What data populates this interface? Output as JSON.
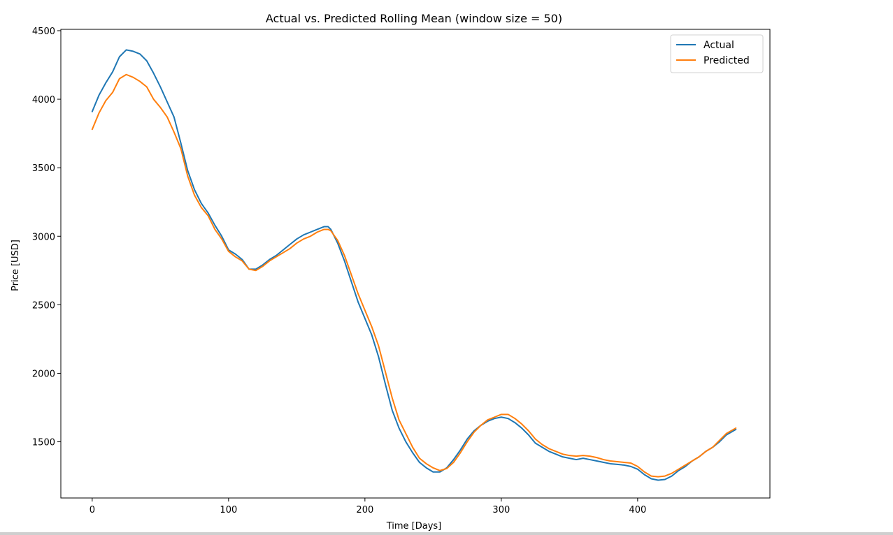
{
  "chart_data": {
    "type": "line",
    "title": "Actual vs. Predicted Rolling Mean (window size = 50)",
    "xlabel": "Time [Days]",
    "ylabel": "Price [USD]",
    "xlim": [
      -23,
      497
    ],
    "ylim": [
      1090,
      4510
    ],
    "xticks": [
      0,
      100,
      200,
      300,
      400
    ],
    "xtick_labels": [
      "0",
      "100",
      "200",
      "300",
      "400"
    ],
    "yticks": [
      1500,
      2000,
      2500,
      3000,
      3500,
      4000,
      4500
    ],
    "ytick_labels": [
      "1500",
      "2000",
      "2500",
      "3000",
      "3500",
      "4000",
      "4500"
    ],
    "grid": false,
    "legend": {
      "position": "top-right",
      "entries": [
        "Actual",
        "Predicted"
      ]
    },
    "colors": {
      "Actual": "#1f77b4",
      "Predicted": "#ff7f0e"
    },
    "series": [
      {
        "name": "Actual",
        "x": [
          0,
          5,
          10,
          15,
          20,
          25,
          30,
          35,
          40,
          45,
          50,
          55,
          60,
          65,
          70,
          75,
          80,
          85,
          90,
          95,
          100,
          105,
          110,
          115,
          120,
          125,
          130,
          135,
          140,
          145,
          150,
          155,
          160,
          165,
          170,
          173,
          175,
          180,
          185,
          190,
          195,
          200,
          205,
          210,
          215,
          220,
          225,
          230,
          235,
          240,
          245,
          250,
          255,
          260,
          265,
          270,
          275,
          280,
          285,
          290,
          295,
          300,
          305,
          310,
          315,
          320,
          325,
          330,
          335,
          340,
          345,
          350,
          355,
          360,
          365,
          370,
          375,
          380,
          385,
          390,
          395,
          400,
          405,
          410,
          415,
          420,
          425,
          430,
          435,
          440,
          445,
          450,
          455,
          460,
          465,
          472
        ],
        "values": [
          3910,
          4030,
          4120,
          4200,
          4310,
          4360,
          4350,
          4330,
          4280,
          4190,
          4090,
          3980,
          3870,
          3680,
          3480,
          3340,
          3240,
          3170,
          3080,
          3000,
          2900,
          2870,
          2830,
          2760,
          2760,
          2790,
          2830,
          2860,
          2900,
          2940,
          2980,
          3010,
          3030,
          3050,
          3070,
          3070,
          3050,
          2950,
          2820,
          2670,
          2520,
          2400,
          2280,
          2120,
          1920,
          1730,
          1600,
          1500,
          1420,
          1350,
          1310,
          1280,
          1280,
          1310,
          1370,
          1440,
          1520,
          1580,
          1620,
          1650,
          1670,
          1680,
          1670,
          1640,
          1600,
          1550,
          1490,
          1460,
          1430,
          1410,
          1390,
          1380,
          1370,
          1380,
          1370,
          1360,
          1350,
          1340,
          1335,
          1330,
          1320,
          1300,
          1260,
          1230,
          1220,
          1225,
          1250,
          1290,
          1320,
          1360,
          1390,
          1430,
          1460,
          1500,
          1550,
          1590
        ]
      },
      {
        "name": "Predicted",
        "x": [
          0,
          5,
          10,
          15,
          20,
          25,
          30,
          35,
          40,
          45,
          50,
          55,
          60,
          65,
          70,
          75,
          80,
          85,
          90,
          95,
          100,
          105,
          110,
          115,
          120,
          125,
          130,
          135,
          140,
          145,
          150,
          155,
          160,
          165,
          170,
          173,
          175,
          180,
          185,
          190,
          195,
          200,
          205,
          210,
          215,
          220,
          225,
          230,
          235,
          240,
          245,
          250,
          255,
          260,
          265,
          270,
          275,
          280,
          285,
          290,
          295,
          300,
          305,
          310,
          315,
          320,
          325,
          330,
          335,
          340,
          345,
          350,
          355,
          360,
          365,
          370,
          375,
          380,
          385,
          390,
          395,
          400,
          405,
          410,
          415,
          420,
          425,
          430,
          435,
          440,
          445,
          450,
          455,
          460,
          465,
          472
        ],
        "values": [
          3780,
          3900,
          3990,
          4050,
          4150,
          4180,
          4160,
          4130,
          4090,
          4000,
          3940,
          3870,
          3760,
          3640,
          3440,
          3300,
          3210,
          3150,
          3050,
          2980,
          2890,
          2850,
          2820,
          2760,
          2750,
          2780,
          2820,
          2850,
          2880,
          2910,
          2950,
          2980,
          3000,
          3030,
          3050,
          3050,
          3040,
          2970,
          2860,
          2720,
          2580,
          2460,
          2340,
          2200,
          2010,
          1820,
          1660,
          1560,
          1460,
          1380,
          1340,
          1310,
          1290,
          1305,
          1350,
          1420,
          1500,
          1570,
          1620,
          1660,
          1680,
          1700,
          1700,
          1670,
          1630,
          1580,
          1520,
          1480,
          1450,
          1430,
          1410,
          1400,
          1395,
          1400,
          1395,
          1385,
          1370,
          1360,
          1355,
          1350,
          1345,
          1320,
          1280,
          1250,
          1245,
          1250,
          1270,
          1300,
          1330,
          1360,
          1390,
          1430,
          1460,
          1510,
          1560,
          1600
        ]
      }
    ]
  }
}
